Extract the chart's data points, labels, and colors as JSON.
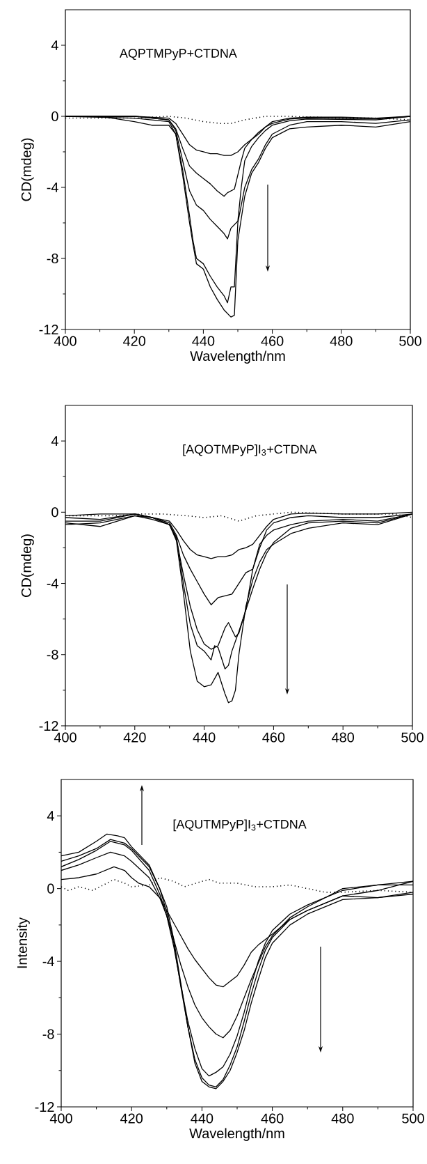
{
  "chart_data": [
    {
      "type": "line",
      "xlabel": "Wavelength/nm",
      "ylabel": "CD(mdeg)",
      "annotations": [
        "AQPTMPyP+CTDNA"
      ],
      "xlim": [
        400,
        500
      ],
      "ylim": [
        -12,
        6
      ],
      "xticks": [
        400,
        420,
        440,
        460,
        480,
        500
      ],
      "yticks": [
        -12,
        -8,
        -4,
        0,
        4
      ],
      "series": [
        {
          "color": "#000000",
          "line_style": "solid",
          "x": [
            400,
            420,
            430,
            432,
            434,
            436,
            438,
            440,
            442,
            444,
            446,
            448,
            450,
            452,
            454,
            456,
            458,
            460,
            465,
            470,
            480,
            490,
            500
          ],
          "values": [
            0,
            0,
            -0.1,
            -0.4,
            -1.0,
            -1.6,
            -1.9,
            -2.0,
            -2.1,
            -2.1,
            -2.2,
            -2.2,
            -2.0,
            -1.6,
            -1.3,
            -1.0,
            -0.6,
            -0.3,
            -0.1,
            -0.05,
            -0.05,
            -0.1,
            0
          ]
        },
        {
          "color": "#000000",
          "line_style": "solid",
          "x": [
            400,
            420,
            430,
            432,
            434,
            436,
            438,
            440,
            442,
            444,
            446,
            447,
            449,
            450,
            451,
            452,
            454,
            456,
            458,
            460,
            465,
            470,
            490,
            500
          ],
          "values": [
            0,
            0,
            -0.2,
            -0.7,
            -1.8,
            -2.8,
            -3.2,
            -3.5,
            -3.8,
            -4.2,
            -4.5,
            -4.3,
            -4.1,
            -3.3,
            -2.5,
            -1.8,
            -1.3,
            -0.9,
            -0.6,
            -0.4,
            -0.15,
            -0.1,
            -0.15,
            0
          ]
        },
        {
          "color": "#000000",
          "line_style": "solid",
          "x": [
            400,
            420,
            430,
            432,
            434,
            436,
            438,
            440,
            442,
            444,
            446,
            447,
            448,
            450,
            451,
            452,
            454,
            456,
            458,
            460,
            465,
            470,
            490,
            500
          ],
          "values": [
            0,
            0,
            -0.2,
            -0.8,
            -2.5,
            -4.2,
            -5.0,
            -5.3,
            -5.8,
            -6.2,
            -6.6,
            -6.9,
            -6.3,
            -5.9,
            -4.0,
            -2.5,
            -1.7,
            -1.2,
            -0.8,
            -0.5,
            -0.25,
            -0.15,
            -0.2,
            0
          ]
        },
        {
          "color": "#000000",
          "line_style": "solid",
          "x": [
            400,
            420,
            430,
            432,
            434,
            436,
            437,
            438,
            440,
            442,
            444,
            446,
            447,
            448,
            449,
            450,
            452,
            454,
            456,
            458,
            460,
            465,
            470,
            480,
            490,
            500
          ],
          "values": [
            0,
            -0.1,
            -0.3,
            -1.0,
            -3.0,
            -5.6,
            -7.0,
            -8.0,
            -8.3,
            -9.0,
            -9.6,
            -10.1,
            -10.5,
            -9.6,
            -9.6,
            -6.0,
            -4.0,
            -3.0,
            -2.4,
            -1.6,
            -1.0,
            -0.5,
            -0.3,
            -0.3,
            -0.4,
            -0.2
          ]
        },
        {
          "color": "#000000",
          "line_style": "solid",
          "x": [
            400,
            410,
            420,
            425,
            430,
            432,
            434,
            436,
            437,
            438,
            440,
            442,
            444,
            446,
            448,
            449,
            450,
            452,
            454,
            456,
            458,
            460,
            465,
            470,
            480,
            490,
            500
          ],
          "values": [
            0,
            0,
            -0.3,
            -0.5,
            -0.5,
            -1.0,
            -3.3,
            -6.0,
            -7.2,
            -8.3,
            -8.6,
            -9.6,
            -10.3,
            -10.9,
            -11.3,
            -11.2,
            -7.0,
            -4.5,
            -3.2,
            -2.6,
            -1.8,
            -1.2,
            -0.7,
            -0.6,
            -0.5,
            -0.6,
            -0.3
          ]
        },
        {
          "color": "#000000",
          "line_style": "dotted",
          "x": [
            400,
            420,
            430,
            435,
            440,
            445,
            448,
            452,
            458,
            465,
            480,
            490,
            500
          ],
          "values": [
            -0.1,
            -0.1,
            0,
            -0.1,
            -0.3,
            -0.4,
            -0.4,
            -0.2,
            0,
            0,
            -0.1,
            -0.1,
            -0.2
          ]
        }
      ]
    },
    {
      "type": "line",
      "ylabel": "CD(mdeg)",
      "annotations": [
        "[AQOTMPyP]I$_{3}$+CTDNA"
      ],
      "xlim": [
        400,
        500
      ],
      "ylim": [
        -12,
        6
      ],
      "xticks": [
        400,
        420,
        440,
        460,
        480,
        500
      ],
      "yticks": [
        -12,
        -8,
        -4,
        0,
        4
      ],
      "series": [
        {
          "color": "#000000",
          "line_style": "solid",
          "x": [
            400,
            410,
            420,
            425,
            430,
            432,
            434,
            436,
            438,
            440,
            442,
            444,
            446,
            448,
            450,
            452,
            454,
            456,
            458,
            460,
            465,
            470,
            480,
            490,
            500
          ],
          "values": [
            -0.2,
            -0.1,
            -0.1,
            -0.3,
            -0.5,
            -1.0,
            -1.6,
            -2.1,
            -2.4,
            -2.5,
            -2.6,
            -2.5,
            -2.5,
            -2.4,
            -2.1,
            -2.0,
            -1.8,
            -1.3,
            -0.8,
            -0.4,
            -0.1,
            -0.05,
            -0.1,
            -0.1,
            0
          ]
        },
        {
          "color": "#000000",
          "line_style": "solid",
          "x": [
            400,
            410,
            420,
            425,
            430,
            432,
            434,
            436,
            438,
            440,
            442,
            444,
            446,
            448,
            450,
            452,
            454,
            456,
            458,
            460,
            465,
            470,
            480,
            490,
            500
          ],
          "values": [
            -0.3,
            -0.4,
            -0.1,
            -0.3,
            -0.6,
            -1.3,
            -2.4,
            -3.2,
            -3.9,
            -4.6,
            -5.2,
            -4.8,
            -4.7,
            -4.6,
            -4.0,
            -3.4,
            -3.2,
            -2.0,
            -1.0,
            -0.6,
            -0.3,
            -0.2,
            -0.3,
            -0.3,
            -0.1
          ]
        },
        {
          "color": "#000000",
          "line_style": "solid",
          "x": [
            400,
            410,
            420,
            425,
            430,
            432,
            434,
            436,
            438,
            440,
            442,
            444,
            446,
            447,
            448,
            449,
            450,
            452,
            454,
            456,
            458,
            460,
            465,
            470,
            480,
            490,
            500
          ],
          "values": [
            -0.5,
            -0.5,
            -0.1,
            -0.3,
            -0.7,
            -1.5,
            -3.5,
            -5.3,
            -6.6,
            -7.4,
            -7.7,
            -7.5,
            -6.5,
            -6.2,
            -6.6,
            -7.0,
            -6.8,
            -5.5,
            -3.2,
            -1.8,
            -1.3,
            -1.0,
            -0.7,
            -0.5,
            -0.4,
            -0.5,
            -0.1
          ]
        },
        {
          "color": "#000000",
          "line_style": "solid",
          "x": [
            400,
            410,
            420,
            425,
            430,
            432,
            434,
            436,
            438,
            440,
            442,
            443,
            444,
            446,
            447,
            448,
            450,
            452,
            454,
            456,
            458,
            460,
            465,
            470,
            480,
            490,
            500
          ],
          "values": [
            -0.6,
            -0.8,
            -0.2,
            -0.3,
            -0.7,
            -1.4,
            -4.0,
            -6.3,
            -7.5,
            -7.8,
            -8.3,
            -7.5,
            -7.6,
            -8.8,
            -8.6,
            -7.8,
            -6.7,
            -5.5,
            -4.3,
            -3.2,
            -2.3,
            -1.7,
            -0.9,
            -0.6,
            -0.5,
            -0.6,
            -0.1
          ]
        },
        {
          "color": "#000000",
          "line_style": "solid",
          "x": [
            400,
            410,
            420,
            425,
            430,
            432,
            434,
            436,
            438,
            440,
            442,
            444,
            446,
            447,
            448,
            449,
            450,
            452,
            454,
            456,
            458,
            460,
            465,
            470,
            480,
            490,
            500
          ],
          "values": [
            -0.7,
            -0.6,
            -0.2,
            -0.4,
            -0.7,
            -1.6,
            -4.5,
            -7.8,
            -9.5,
            -9.8,
            -9.7,
            -9.0,
            -10.2,
            -10.7,
            -10.6,
            -10.0,
            -8.0,
            -5.3,
            -3.8,
            -2.8,
            -2.1,
            -1.8,
            -1.2,
            -0.9,
            -0.6,
            -0.7,
            -0.1
          ]
        },
        {
          "color": "#000000",
          "line_style": "dotted",
          "x": [
            400,
            415,
            420,
            428,
            435,
            440,
            445,
            450,
            455,
            465,
            480,
            495,
            500
          ],
          "values": [
            -0.2,
            -0.2,
            -0.1,
            -0.1,
            -0.2,
            -0.3,
            -0.2,
            -0.5,
            -0.2,
            0,
            -0.1,
            -0.1,
            -0.3
          ]
        }
      ]
    },
    {
      "type": "line",
      "xlabel": "Wavelength/nm",
      "ylabel": "Intensity",
      "annotations": [
        "[AQUTMPyP]I$_{3}$+CTDNA"
      ],
      "xlim": [
        400,
        500
      ],
      "ylim": [
        -12,
        6
      ],
      "xticks": [
        400,
        420,
        440,
        460,
        480,
        500
      ],
      "yticks": [
        -12,
        -8,
        -4,
        0,
        4
      ],
      "series": [
        {
          "color": "#000000",
          "line_style": "solid",
          "x": [
            400,
            405,
            410,
            415,
            418,
            420,
            422,
            425,
            428,
            430,
            432,
            434,
            436,
            438,
            440,
            442,
            444,
            446,
            448,
            450,
            452,
            454,
            456,
            458,
            460,
            465,
            470,
            475,
            480,
            490,
            500
          ],
          "values": [
            0.5,
            0.6,
            0.8,
            1.2,
            1.0,
            0.6,
            0.3,
            0.1,
            -0.5,
            -1.2,
            -1.9,
            -2.6,
            -3.3,
            -3.9,
            -4.4,
            -4.9,
            -5.3,
            -5.4,
            -5.1,
            -4.8,
            -4.2,
            -3.5,
            -3.1,
            -2.8,
            -2.5,
            -1.7,
            -1.2,
            -0.8,
            -0.4,
            -0.1,
            0.4
          ]
        },
        {
          "color": "#000000",
          "line_style": "solid",
          "x": [
            400,
            405,
            410,
            414,
            418,
            420,
            425,
            428,
            430,
            432,
            434,
            436,
            438,
            440,
            442,
            444,
            446,
            448,
            450,
            452,
            454,
            456,
            458,
            460,
            465,
            470,
            475,
            480,
            490,
            500
          ],
          "values": [
            1.0,
            1.3,
            1.7,
            2.0,
            1.8,
            1.5,
            0.6,
            -0.5,
            -1.5,
            -2.8,
            -4.2,
            -5.4,
            -6.4,
            -7.1,
            -7.6,
            -8.0,
            -8.2,
            -7.8,
            -7.0,
            -6.0,
            -5.0,
            -4.1,
            -3.2,
            -2.6,
            -1.6,
            -1.0,
            -0.5,
            -0.1,
            0.2,
            0.4
          ]
        },
        {
          "color": "#000000",
          "line_style": "solid",
          "x": [
            400,
            405,
            410,
            414,
            418,
            420,
            425,
            428,
            430,
            432,
            434,
            436,
            438,
            440,
            442,
            444,
            446,
            448,
            450,
            452,
            454,
            456,
            458,
            460,
            465,
            470,
            475,
            480,
            490,
            500
          ],
          "values": [
            1.2,
            1.6,
            2.1,
            2.6,
            2.4,
            2.1,
            1.0,
            -0.3,
            -1.5,
            -3.2,
            -5.3,
            -7.3,
            -8.8,
            -9.9,
            -10.3,
            -10.1,
            -9.8,
            -9.1,
            -8.1,
            -6.8,
            -5.3,
            -4.0,
            -3.0,
            -2.3,
            -1.4,
            -0.9,
            -0.5,
            0,
            0.2,
            0.2
          ]
        },
        {
          "color": "#000000",
          "line_style": "solid",
          "x": [
            400,
            405,
            410,
            414,
            418,
            420,
            425,
            428,
            430,
            432,
            434,
            436,
            438,
            440,
            442,
            444,
            446,
            448,
            450,
            452,
            454,
            456,
            458,
            460,
            465,
            470,
            475,
            480,
            490,
            500
          ],
          "values": [
            1.5,
            1.8,
            2.2,
            2.7,
            2.5,
            2.2,
            1.2,
            0,
            -1.3,
            -3.0,
            -5.4,
            -7.6,
            -9.4,
            -10.4,
            -10.8,
            -10.9,
            -10.5,
            -9.7,
            -8.7,
            -7.3,
            -5.8,
            -4.5,
            -3.4,
            -2.7,
            -1.7,
            -1.2,
            -0.8,
            -0.4,
            -0.5,
            -0.2
          ]
        },
        {
          "color": "#000000",
          "line_style": "solid",
          "x": [
            400,
            405,
            410,
            413,
            416,
            418,
            420,
            425,
            428,
            430,
            432,
            434,
            436,
            438,
            440,
            442,
            444,
            446,
            448,
            450,
            452,
            454,
            456,
            458,
            460,
            465,
            470,
            475,
            480,
            490,
            500
          ],
          "values": [
            1.8,
            2.0,
            2.6,
            3.0,
            2.9,
            2.8,
            2.3,
            1.3,
            0,
            -1.0,
            -2.8,
            -5.2,
            -7.6,
            -9.6,
            -10.6,
            -10.9,
            -11.0,
            -10.6,
            -10.0,
            -9.0,
            -7.8,
            -6.3,
            -5.0,
            -3.8,
            -3.0,
            -2.0,
            -1.4,
            -1.0,
            -0.6,
            -0.5,
            -0.3
          ]
        },
        {
          "color": "#000000",
          "line_style": "dotted",
          "x": [
            400,
            402,
            405,
            409,
            412,
            415,
            418,
            420,
            425,
            428,
            432,
            435,
            440,
            442,
            445,
            450,
            455,
            460,
            465,
            470,
            475,
            480,
            490,
            500
          ],
          "values": [
            0.1,
            -0.1,
            0.1,
            -0.1,
            0.2,
            0.5,
            0.3,
            0.1,
            0.2,
            0.6,
            0.4,
            0.1,
            0.4,
            0.5,
            0.3,
            0.3,
            0.1,
            0.1,
            0.2,
            0,
            -0.2,
            -0.2,
            -0.1,
            -0.2
          ]
        }
      ]
    }
  ]
}
